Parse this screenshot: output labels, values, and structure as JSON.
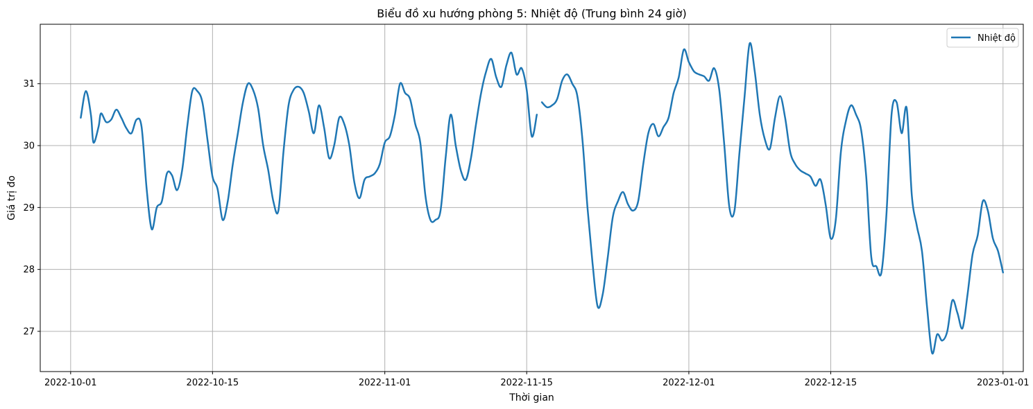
{
  "chart_data": {
    "type": "line",
    "title": "Biểu đồ xu hướng phòng 5: Nhiệt độ (Trung bình 24 giờ)",
    "xlabel": "Thời gian",
    "ylabel": "Giá trị đo",
    "xlim": [
      "2022-09-28",
      "2023-01-03"
    ],
    "ylim": [
      26.35,
      31.96
    ],
    "x_ticks": [
      "2022-10-01",
      "2022-10-15",
      "2022-11-01",
      "2022-11-15",
      "2022-12-01",
      "2022-12-15",
      "2023-01-01"
    ],
    "y_ticks": [
      27,
      28,
      29,
      30,
      31
    ],
    "grid": true,
    "legend": {
      "position": "top-right",
      "entries": [
        "Nhiệt độ"
      ]
    },
    "colors": {
      "series": "#1f77b4",
      "grid": "#b0b0b0",
      "axes": "#000000"
    },
    "series": [
      {
        "name": "Nhiệt độ",
        "segments": [
          {
            "x": [
              "2022-10-02",
              "2022-10-02T12:00",
              "2022-10-03",
              "2022-10-03T06:00",
              "2022-10-03T18:00",
              "2022-10-04",
              "2022-10-04T12:00",
              "2022-10-05",
              "2022-10-05T12:00",
              "2022-10-06",
              "2022-10-06T12:00",
              "2022-10-07",
              "2022-10-07T12:00",
              "2022-10-08",
              "2022-10-08T12:00",
              "2022-10-09",
              "2022-10-09T12:00",
              "2022-10-10",
              "2022-10-10T12:00",
              "2022-10-11",
              "2022-10-11T12:00",
              "2022-10-12",
              "2022-10-12T12:00",
              "2022-10-13",
              "2022-10-13T12:00",
              "2022-10-14",
              "2022-10-14T12:00",
              "2022-10-15",
              "2022-10-15T12:00",
              "2022-10-16",
              "2022-10-16T12:00",
              "2022-10-17",
              "2022-10-17T12:00",
              "2022-10-18",
              "2022-10-18T12:00",
              "2022-10-19",
              "2022-10-19T12:00",
              "2022-10-20",
              "2022-10-20T12:00",
              "2022-10-21",
              "2022-10-21T12:00",
              "2022-10-22",
              "2022-10-22T12:00",
              "2022-10-23",
              "2022-10-23T12:00",
              "2022-10-24",
              "2022-10-24T12:00",
              "2022-10-25",
              "2022-10-25T12:00",
              "2022-10-26",
              "2022-10-26T12:00",
              "2022-10-27",
              "2022-10-27T12:00",
              "2022-10-28",
              "2022-10-28T12:00",
              "2022-10-29",
              "2022-10-29T12:00",
              "2022-10-30",
              "2022-10-30T12:00",
              "2022-10-31",
              "2022-10-31T12:00",
              "2022-11-01",
              "2022-11-01T12:00",
              "2022-11-02",
              "2022-11-02T12:00",
              "2022-11-03",
              "2022-11-03T12:00",
              "2022-11-04",
              "2022-11-04T12:00",
              "2022-11-05",
              "2022-11-05T12:00",
              "2022-11-06",
              "2022-11-06T12:00",
              "2022-11-07",
              "2022-11-07T12:00",
              "2022-11-08",
              "2022-11-08T12:00",
              "2022-11-09",
              "2022-11-09T12:00",
              "2022-11-10",
              "2022-11-10T12:00",
              "2022-11-11",
              "2022-11-11T12:00",
              "2022-11-12",
              "2022-11-12T12:00",
              "2022-11-13",
              "2022-11-13T12:00",
              "2022-11-14",
              "2022-11-14T12:00",
              "2022-11-15",
              "2022-11-15T12:00",
              "2022-11-16"
            ],
            "y": [
              30.45,
              30.88,
              30.5,
              30.05,
              30.3,
              30.52,
              30.38,
              30.42,
              30.58,
              30.45,
              30.28,
              30.2,
              30.42,
              30.3,
              29.3,
              28.65,
              29.0,
              29.1,
              29.55,
              29.52,
              29.28,
              29.6,
              30.3,
              30.88,
              30.88,
              30.7,
              30.1,
              29.5,
              29.3,
              28.8,
              29.1,
              29.7,
              30.2,
              30.7,
              31.0,
              30.9,
              30.6,
              30.0,
              29.6,
              29.1,
              28.95,
              29.9,
              30.65,
              30.9,
              30.95,
              30.85,
              30.55,
              30.2,
              30.65,
              30.3,
              29.8,
              30.0,
              30.45,
              30.35,
              30.0,
              29.4,
              29.15,
              29.45,
              29.5,
              29.55,
              29.7,
              30.05,
              30.15,
              30.5,
              31.0,
              30.85,
              30.75,
              30.35,
              30.05,
              29.2,
              28.8,
              28.8,
              28.95,
              29.8,
              30.5,
              30.0,
              29.6,
              29.45,
              29.8,
              30.35,
              30.85,
              31.2,
              31.4,
              31.1,
              30.95,
              31.3,
              31.5,
              31.15,
              31.25,
              30.9,
              30.15,
              30.5
            ]
          },
          {
            "x": [
              "2022-11-16T12:00",
              "2022-11-17",
              "2022-11-17T12:00",
              "2022-11-18",
              "2022-11-18T12:00",
              "2022-11-19",
              "2022-11-19T12:00",
              "2022-11-20",
              "2022-11-20T12:00",
              "2022-11-21",
              "2022-11-21T12:00",
              "2022-11-22",
              "2022-11-22T12:00",
              "2022-11-23",
              "2022-11-23T12:00",
              "2022-11-24",
              "2022-11-24T12:00",
              "2022-11-25",
              "2022-11-25T12:00",
              "2022-11-26",
              "2022-11-26T12:00",
              "2022-11-27",
              "2022-11-27T12:00",
              "2022-11-28",
              "2022-11-28T12:00",
              "2022-11-29",
              "2022-11-29T12:00",
              "2022-11-30",
              "2022-11-30T12:00",
              "2022-12-01",
              "2022-12-01T12:00",
              "2022-12-02",
              "2022-12-02T12:00",
              "2022-12-03",
              "2022-12-03T12:00",
              "2022-12-04",
              "2022-12-04T12:00",
              "2022-12-05",
              "2022-12-05T12:00",
              "2022-12-06",
              "2022-12-06T12:00",
              "2022-12-07",
              "2022-12-07T12:00",
              "2022-12-08",
              "2022-12-08T12:00",
              "2022-12-09",
              "2022-12-09T12:00",
              "2022-12-10",
              "2022-12-10T12:00",
              "2022-12-11",
              "2022-12-11T12:00",
              "2022-12-12",
              "2022-12-12T12:00",
              "2022-12-13",
              "2022-12-13T12:00",
              "2022-12-14",
              "2022-12-14T12:00",
              "2022-12-15",
              "2022-12-15T12:00",
              "2022-12-16",
              "2022-12-16T12:00",
              "2022-12-17",
              "2022-12-17T12:00",
              "2022-12-18",
              "2022-12-18T12:00",
              "2022-12-19",
              "2022-12-19T12:00",
              "2022-12-20",
              "2022-12-20T12:00",
              "2022-12-21",
              "2022-12-21T12:00",
              "2022-12-22",
              "2022-12-22T12:00",
              "2022-12-23",
              "2022-12-23T12:00",
              "2022-12-24",
              "2022-12-24T12:00",
              "2022-12-25",
              "2022-12-25T12:00",
              "2022-12-26",
              "2022-12-26T12:00",
              "2022-12-27",
              "2022-12-27T12:00",
              "2022-12-28",
              "2022-12-28T12:00",
              "2022-12-29",
              "2022-12-29T12:00",
              "2022-12-30",
              "2022-12-30T12:00",
              "2022-12-31",
              "2022-12-31T12:00",
              "2023-01-01"
            ],
            "y": [
              30.7,
              30.62,
              30.65,
              30.75,
              31.05,
              31.15,
              31.0,
              30.8,
              30.1,
              29.0,
              28.1,
              27.4,
              27.6,
              28.2,
              28.85,
              29.1,
              29.25,
              29.05,
              28.95,
              29.1,
              29.7,
              30.2,
              30.35,
              30.15,
              30.3,
              30.45,
              30.85,
              31.1,
              31.55,
              31.35,
              31.2,
              31.15,
              31.12,
              31.05,
              31.25,
              30.9,
              30.0,
              29.0,
              28.95,
              29.9,
              30.8,
              31.65,
              31.2,
              30.5,
              30.1,
              29.95,
              30.45,
              30.8,
              30.45,
              29.9,
              29.7,
              29.6,
              29.55,
              29.5,
              29.35,
              29.45,
              29.05,
              28.5,
              28.8,
              29.9,
              30.4,
              30.65,
              30.5,
              30.25,
              29.5,
              28.2,
              28.05,
              27.95,
              28.9,
              30.5,
              30.7,
              30.2,
              30.6,
              29.2,
              28.7,
              28.3,
              27.4,
              26.65,
              26.95,
              26.85,
              27.0,
              27.5,
              27.3,
              27.05,
              27.6,
              28.25,
              28.55,
              29.1,
              28.95,
              28.5,
              28.3,
              27.95
            ]
          }
        ]
      }
    ]
  }
}
